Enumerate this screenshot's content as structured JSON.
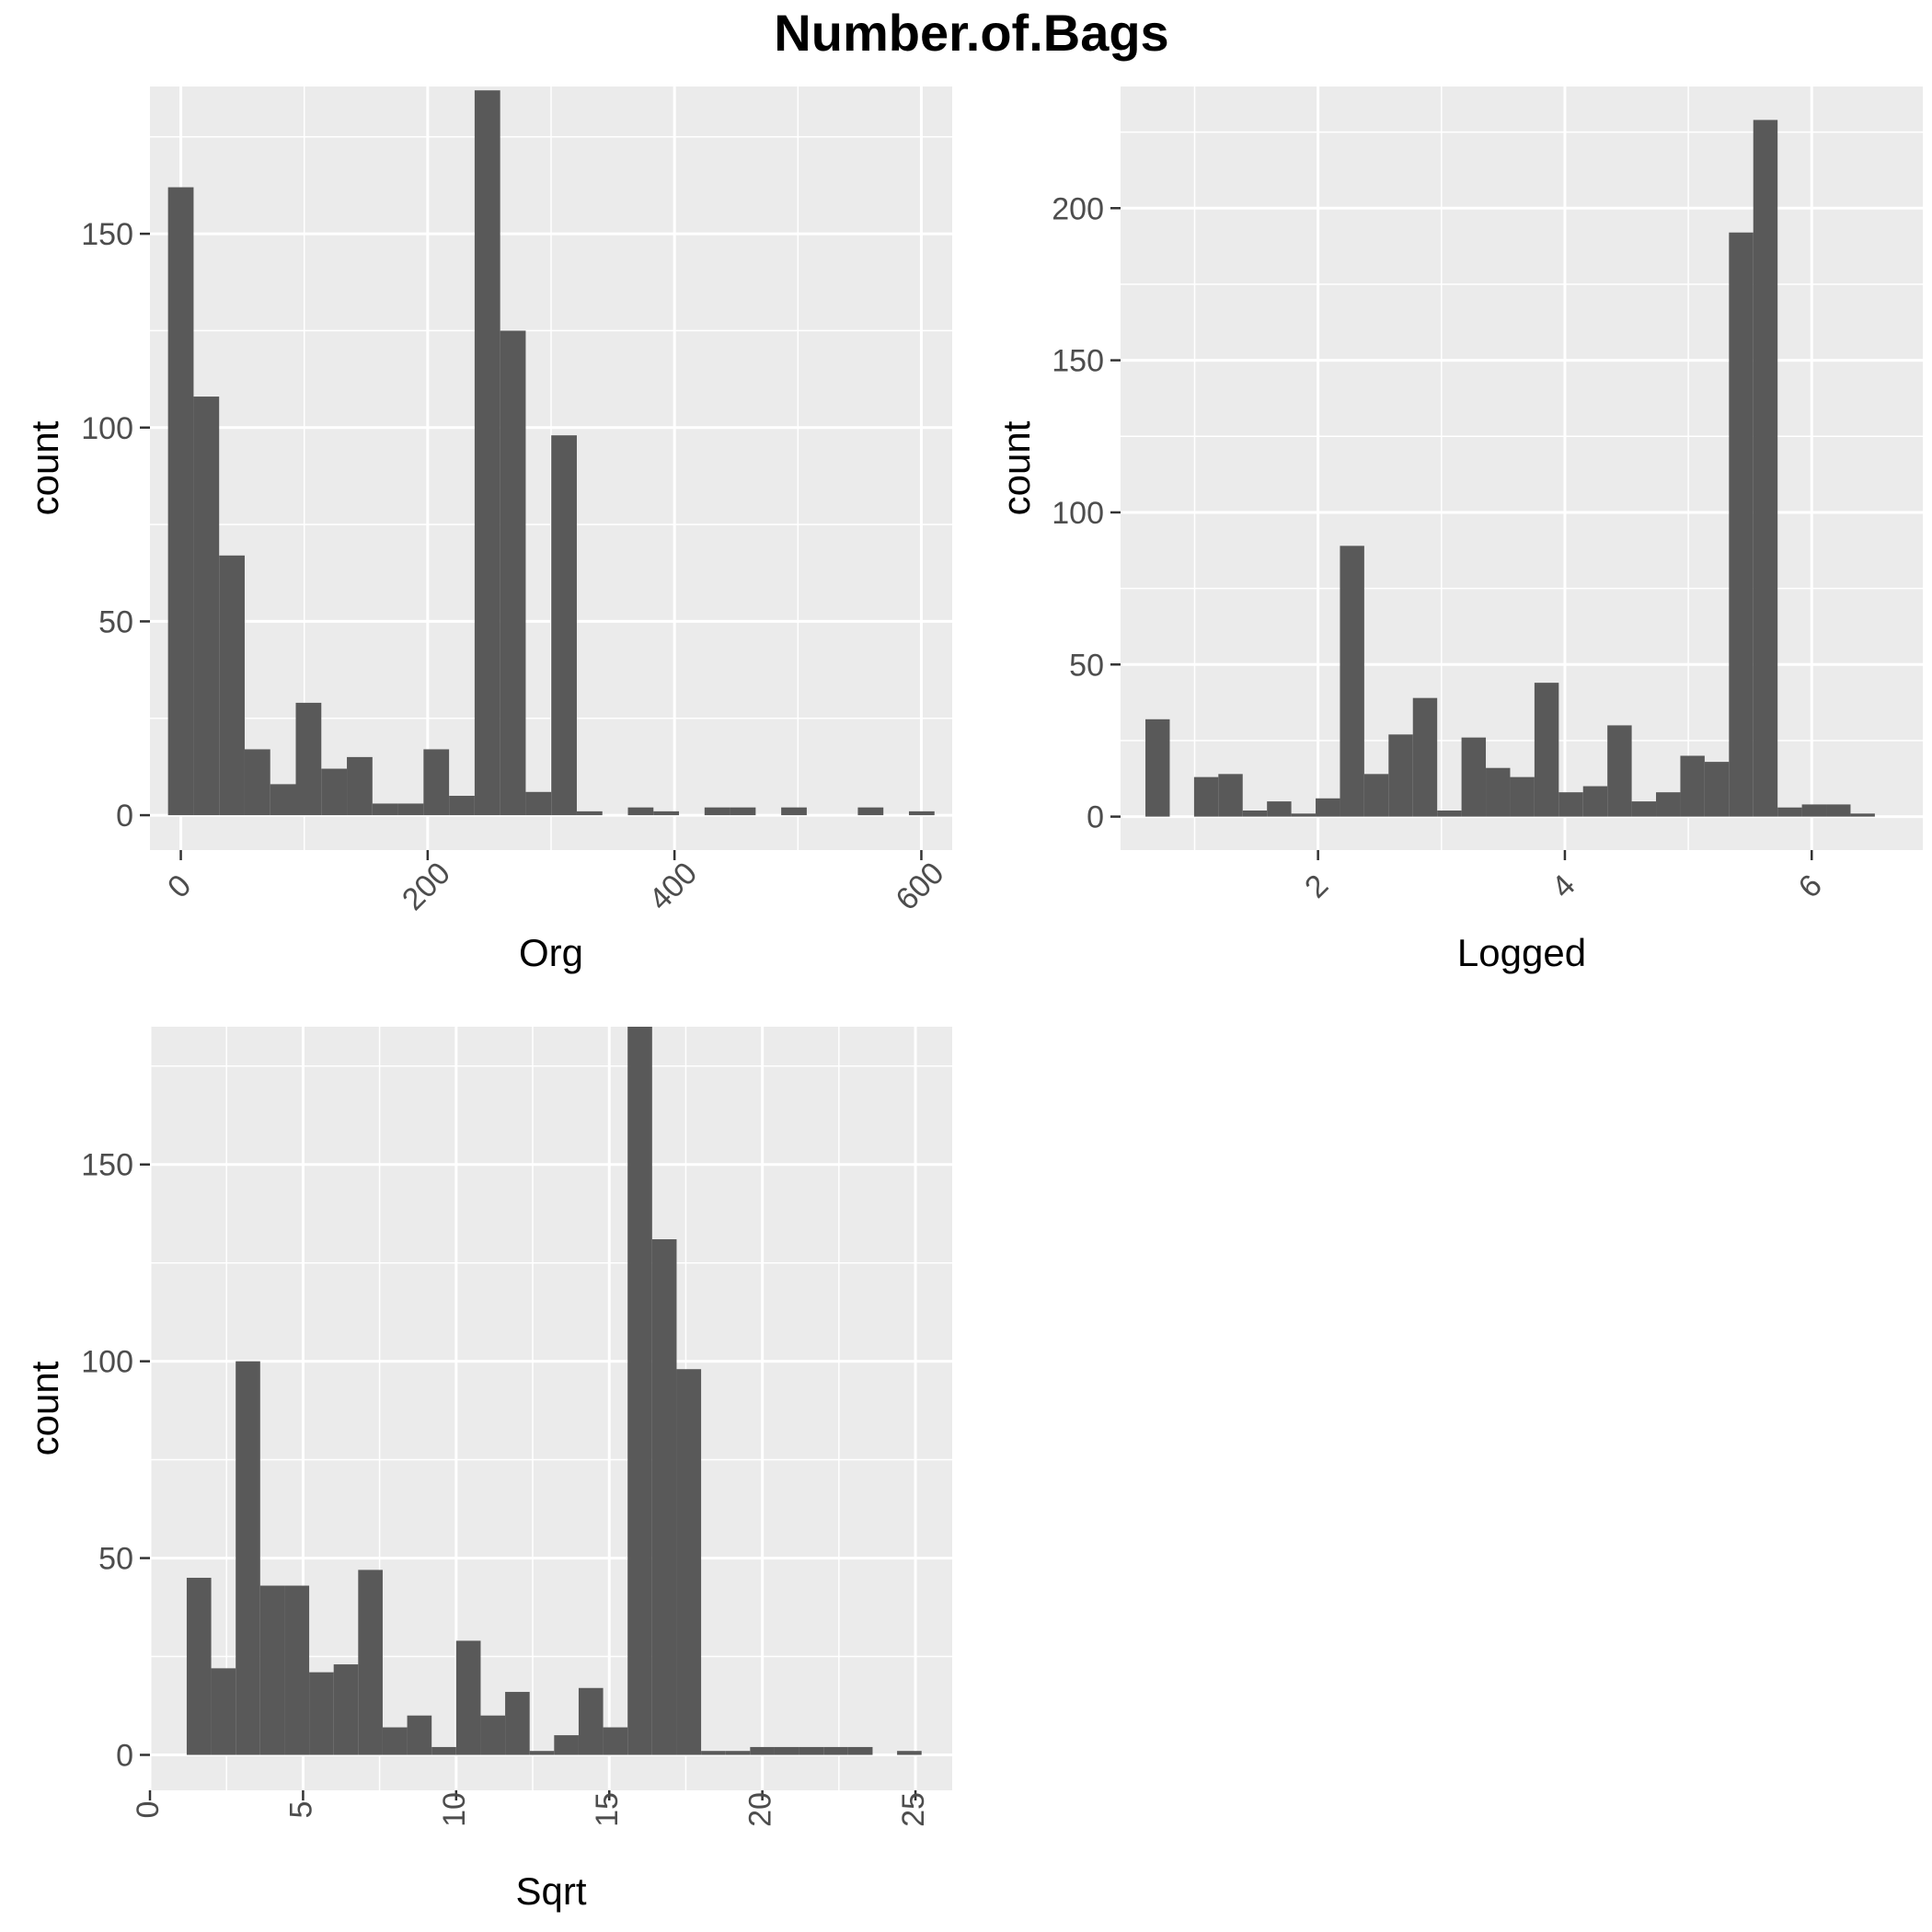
{
  "figure": {
    "title": "Number.of.Bags"
  },
  "chart_data": [
    {
      "type": "bar",
      "panel": "top-left",
      "xlabel": "Org",
      "ylabel": "count",
      "xlim": [
        -25,
        625
      ],
      "ylim": [
        -9,
        188
      ],
      "x_ticks": [
        0,
        200,
        400,
        600
      ],
      "x_tick_labels": [
        "0",
        "200",
        "400",
        "600"
      ],
      "x_tick_rotation": -45,
      "y_ticks": [
        0,
        50,
        100,
        150
      ],
      "y_tick_labels": [
        "0",
        "50",
        "100",
        "150"
      ],
      "grid": true,
      "bin_width": 20.7,
      "bin_centers": [
        0,
        20.7,
        41.4,
        62.1,
        82.8,
        103.5,
        124.2,
        144.9,
        165.6,
        186.3,
        207,
        227.7,
        248.4,
        269.1,
        289.8,
        310.5,
        331.2,
        351.9,
        372.6,
        393.3,
        414,
        434.7,
        455.4,
        476.1,
        496.8,
        517.5,
        538.2,
        558.9,
        579.6,
        600.3
      ],
      "values": [
        162,
        108,
        67,
        17,
        8,
        29,
        12,
        15,
        3,
        3,
        17,
        5,
        187,
        125,
        6,
        98,
        1,
        0,
        2,
        1,
        0,
        2,
        2,
        0,
        2,
        0,
        0,
        2,
        0,
        1
      ]
    },
    {
      "type": "bar",
      "panel": "top-right",
      "xlabel": "Logged",
      "ylabel": "count",
      "xlim": [
        0.4,
        6.9
      ],
      "ylim": [
        -11,
        240
      ],
      "x_ticks": [
        2,
        4,
        6
      ],
      "x_tick_labels": [
        "2",
        "4",
        "6"
      ],
      "x_tick_rotation": -45,
      "y_ticks": [
        0,
        50,
        100,
        150,
        200
      ],
      "y_tick_labels": [
        "0",
        "50",
        "100",
        "150",
        "200"
      ],
      "grid": true,
      "bin_width": 0.197,
      "bin_centers": [
        0.7,
        0.897,
        1.094,
        1.291,
        1.488,
        1.685,
        1.882,
        2.079,
        2.276,
        2.473,
        2.67,
        2.867,
        3.064,
        3.261,
        3.458,
        3.655,
        3.852,
        4.049,
        4.246,
        4.443,
        4.64,
        4.837,
        5.034,
        5.231,
        5.428,
        5.625,
        5.822,
        6.019,
        6.216,
        6.413
      ],
      "values": [
        32,
        0,
        13,
        14,
        2,
        5,
        1,
        6,
        89,
        14,
        27,
        39,
        2,
        26,
        16,
        13,
        44,
        8,
        10,
        30,
        5,
        8,
        20,
        18,
        192,
        229,
        3,
        4,
        4,
        1
      ]
    },
    {
      "type": "bar",
      "panel": "bottom-left",
      "xlabel": "Sqrt",
      "ylabel": "count",
      "xlim": [
        0,
        26.2
      ],
      "ylim": [
        -9,
        185
      ],
      "x_ticks": [
        0,
        5,
        10,
        15,
        20,
        25
      ],
      "x_tick_labels": [
        "0",
        "5",
        "10",
        "15",
        "20",
        "25"
      ],
      "x_tick_rotation": -90,
      "y_ticks": [
        0,
        50,
        100,
        150
      ],
      "y_tick_labels": [
        "0",
        "50",
        "100",
        "150"
      ],
      "grid": true,
      "bin_width": 0.8,
      "bin_centers": [
        1.6,
        2.4,
        3.2,
        4.0,
        4.8,
        5.6,
        6.4,
        7.2,
        8.0,
        8.8,
        9.6,
        10.4,
        11.2,
        12.0,
        12.8,
        13.6,
        14.4,
        15.2,
        16.0,
        16.8,
        17.6,
        18.4,
        19.2,
        20.0,
        20.8,
        21.6,
        22.4,
        23.2,
        24.0,
        24.8
      ],
      "values": [
        45,
        22,
        100,
        43,
        43,
        21,
        23,
        47,
        7,
        10,
        2,
        29,
        10,
        16,
        1,
        5,
        17,
        7,
        185,
        131,
        98,
        1,
        1,
        2,
        2,
        2,
        2,
        2,
        0,
        1
      ]
    }
  ]
}
